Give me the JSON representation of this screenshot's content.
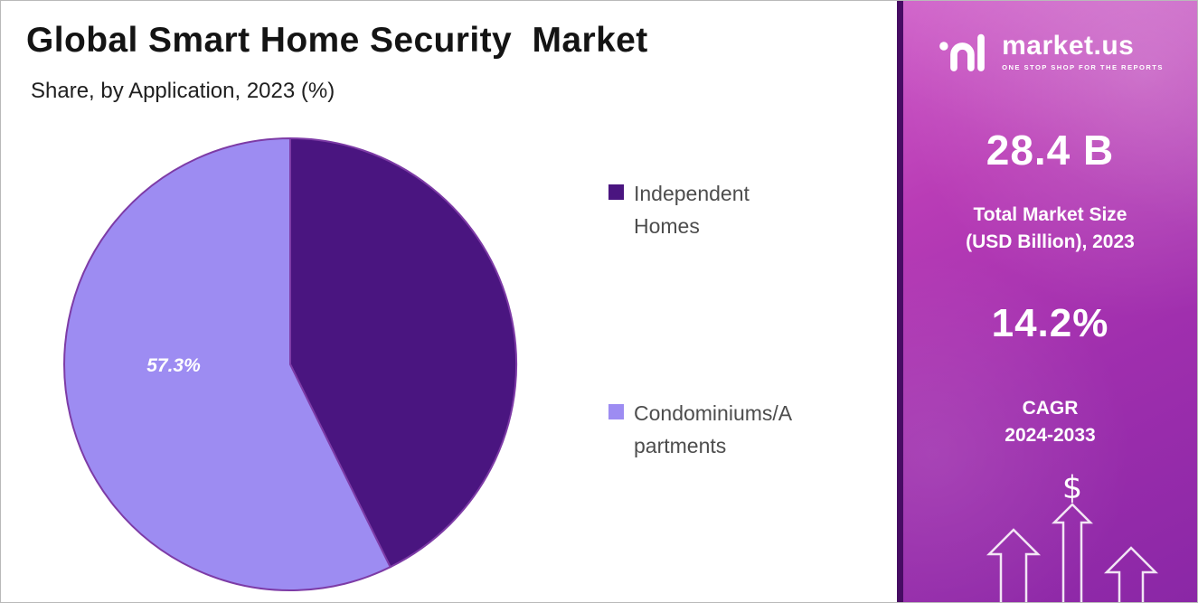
{
  "chart_data": {
    "type": "pie",
    "title": "Global Smart Home Security  Market",
    "subtitle": "Share, by Application, 2023 (%)",
    "legend_position": "right",
    "stroke_color": "#7d3ba6",
    "label_color": "#ffffff",
    "slices": [
      {
        "label": "Independent Homes",
        "value": 42.7,
        "color": "#4a1580",
        "legend_lines": "Independent\nHomes",
        "pct_label": ""
      },
      {
        "label": "Condominiums/Apartments",
        "value": 57.3,
        "color": "#9d8cf2",
        "legend_lines": "Condominiums/A\npartments",
        "pct_label": "57.3%"
      }
    ]
  },
  "sidebar": {
    "logo": {
      "name": "market.us",
      "tagline": "ONE STOP SHOP FOR THE REPORTS"
    },
    "stats": [
      {
        "value": "28.4 B",
        "label": "Total Market Size\n(USD Billion), 2023"
      },
      {
        "value": "14.2%",
        "label": "CAGR\n2024-2033"
      }
    ],
    "currency_symbol": "$",
    "accent_dark": "#470c63",
    "accent_gradient_top": "#cf5ec8",
    "accent_gradient_bottom": "#8a27a6"
  }
}
